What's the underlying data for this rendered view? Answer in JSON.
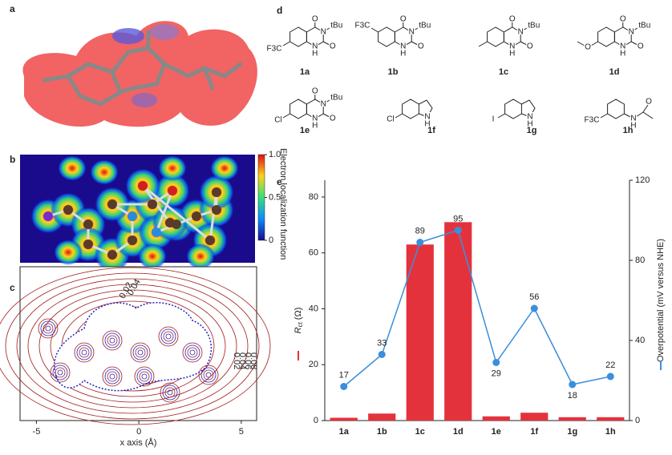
{
  "panel_labels": [
    "a",
    "b",
    "c",
    "d",
    "e"
  ],
  "panel_b": {
    "colorbar_title": "Electron localization function",
    "colorbar_lim": [
      0,
      1
    ],
    "colorbar_ticks": [
      {
        "value": 1,
        "label": "1.0"
      },
      0.5,
      0
    ]
  },
  "panel_c": {
    "x_label": "x axis (Å)",
    "xlim": [
      -5.8,
      5.75
    ],
    "xticks": [
      -5,
      0,
      5
    ],
    "contour_labels_top": [
      "0.02",
      "0.04"
    ],
    "contour_labels_right": [
      "0.08",
      "0.06",
      "0.04",
      "0.02"
    ]
  },
  "compounds": [
    {
      "label": "1a",
      "atoms": [
        "O",
        "N",
        "tBu",
        "O",
        "N",
        "H",
        "F3C"
      ]
    },
    {
      "label": "1b",
      "atoms": [
        "O",
        "N",
        "tBu",
        "O",
        "N",
        "H",
        "F3C"
      ]
    },
    {
      "label": "1c",
      "atoms": [
        "O",
        "N",
        "tBu",
        "O",
        "N",
        "H"
      ]
    },
    {
      "label": "1d",
      "atoms": [
        "O",
        "N",
        "tBu",
        "O",
        "N",
        "H",
        "O"
      ]
    },
    {
      "label": "1e",
      "atoms": [
        "O",
        "N",
        "tBu",
        "O",
        "N",
        "H",
        "Cl"
      ]
    },
    {
      "label": "1f",
      "atoms": [
        "Cl",
        "N",
        "H"
      ]
    },
    {
      "label": "1g",
      "atoms": [
        "I",
        "N",
        "H"
      ]
    },
    {
      "label": "1h",
      "atoms": [
        "F3C",
        "N",
        "H",
        "O"
      ]
    }
  ],
  "chart_data": {
    "type": "bar",
    "categories": [
      "1a",
      "1b",
      "1c",
      "1d",
      "1e",
      "1f",
      "1g",
      "1h"
    ],
    "y_label": {
      "symbol": "R",
      "subscript": "ct",
      "unit": "(Ω)"
    },
    "y2_label": "Overpotential (mV versus NHE)",
    "series": [
      {
        "type": "bar",
        "color": "#e4323d",
        "values": [
          1,
          2.5,
          63,
          71,
          1.5,
          2.8,
          1.2,
          1.2
        ]
      },
      {
        "type": "line",
        "axis": "y2",
        "color": "#3b8fdb",
        "values": [
          17,
          33,
          89,
          95,
          29,
          56,
          18,
          22
        ]
      }
    ],
    "ylim": [
      0,
      86
    ],
    "yticks": [
      0,
      20,
      40,
      60,
      80
    ],
    "y2lim": [
      0,
      120
    ],
    "y2ticks": [
      0,
      40,
      80,
      120
    ]
  }
}
